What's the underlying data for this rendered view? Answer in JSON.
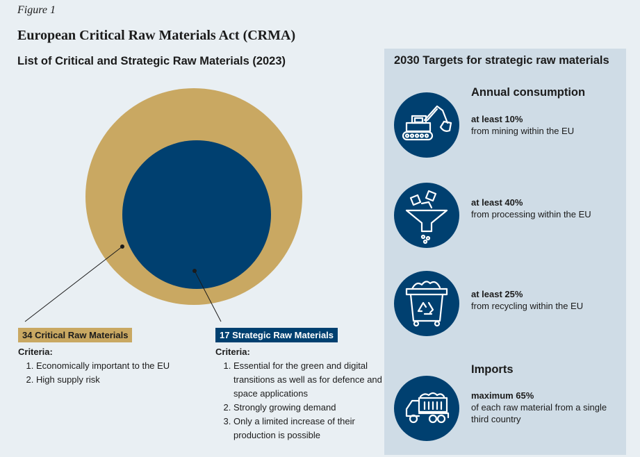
{
  "figure_label": "Figure 1",
  "title": "European Critical Raw Materials Act (CRMA)",
  "subtitle": "List of Critical and Strategic Raw Materials (2023)",
  "critical": {
    "tag": "34 Critical Raw Materials",
    "criteria_heading": "Criteria:",
    "criteria": [
      "Economically important to the EU",
      "High supply risk"
    ]
  },
  "strategic": {
    "tag": "17 Strategic Raw Materials",
    "criteria_heading": "Criteria:",
    "criteria": [
      "Essential for the green and digital transitions as well as for defence and space applications",
      "Strongly growing demand",
      "Only a limited increase of their production is possible"
    ]
  },
  "targets": {
    "title": "2030 Targets for strategic raw materials",
    "annual_heading": "Annual consumption",
    "imports_heading": "Imports",
    "items": [
      {
        "icon": "excavator-icon",
        "value": "at least 10%",
        "desc": "from mining within the EU"
      },
      {
        "icon": "funnel-icon",
        "value": "at least 40%",
        "desc": "from processing within the EU"
      },
      {
        "icon": "recycling-bin-icon",
        "value": "at least 25%",
        "desc": "from recycling within the EU"
      },
      {
        "icon": "dump-truck-icon",
        "value": "maximum 65%",
        "desc": "of each raw material from a single third country"
      }
    ]
  },
  "colors": {
    "critical": "#c9a862",
    "strategic": "#004070",
    "panel": "#cfdce6",
    "background": "#e9eff3"
  }
}
